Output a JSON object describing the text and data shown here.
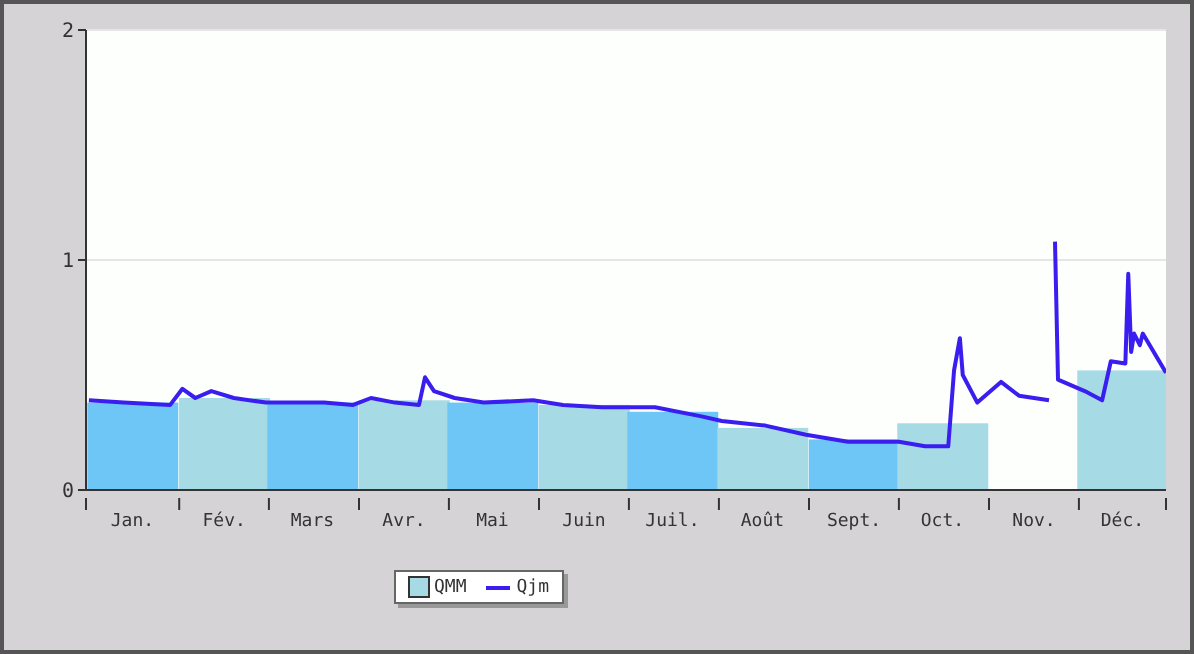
{
  "chart_data": {
    "type": "bar",
    "series": [
      {
        "name": "QMM",
        "color": "#a6dbe6",
        "x": [
          "--01-16",
          "--02-15",
          "--03-16",
          "--04-16",
          "--05-16",
          "--06-16",
          "--07-16",
          "--08-16",
          "--09-16",
          "--10-16",
          "--11-16",
          "--12-16"
        ],
        "colors": [
          "#6ec6f6",
          "#a6dbe6",
          "#6ec6f6",
          "#a6dbe6",
          "#6ec6f6",
          "#a6dbe6",
          "#6ec6f6",
          "#a6dbe6",
          "#6ec6f6",
          "#a6dbe6",
          null,
          "#a6dbe6"
        ],
        "values": [
          0.38,
          0.4,
          0.38,
          0.39,
          0.38,
          0.37,
          0.34,
          0.27,
          0.22,
          0.29,
          null,
          0.52
        ]
      },
      {
        "name": "Qjm",
        "type": "line",
        "color": "#3a1ef0",
        "x": [
          "--01-01",
          "--01-13",
          "--01-29",
          "--02-02",
          "--02-06",
          "--02-11",
          "--02-18",
          "--02-28",
          "--03-20",
          "--03-30",
          "--04-05",
          "--04-13",
          "--04-21",
          "--04-23",
          "--04-26",
          "--05-03",
          "--05-13",
          "--05-30",
          "--06-09",
          "--06-22",
          "--07-10",
          "--07-26",
          "--08-02",
          "--08-17",
          "--08-31",
          "--09-14",
          "--10-01",
          "--10-10",
          "--10-18",
          "--10-20",
          "--10-22",
          "--10-23",
          "--10-28",
          "--11-05",
          "--11-11",
          "--11-21",
          "--11-22",
          "--11-23",
          "--11-24",
          "--12-03",
          "--12-09",
          "--12-12",
          "--12-17",
          "--12-18",
          "--12-19",
          "--12-20",
          "--12-22",
          "--12-23",
          "--12-31"
        ],
        "values": [
          0.39,
          0.38,
          0.37,
          0.44,
          0.4,
          0.43,
          0.4,
          0.38,
          0.38,
          0.37,
          0.4,
          0.38,
          0.37,
          0.49,
          0.43,
          0.4,
          0.38,
          0.39,
          0.37,
          0.36,
          0.36,
          0.32,
          0.3,
          0.28,
          0.24,
          0.21,
          0.21,
          0.19,
          0.19,
          0.52,
          0.66,
          0.5,
          0.38,
          0.47,
          0.41,
          0.39,
          null,
          1.08,
          0.48,
          0.43,
          0.39,
          0.56,
          0.55,
          0.94,
          0.6,
          0.68,
          0.63,
          0.68,
          0.51
        ]
      }
    ],
    "xlim": [
      "--01-01",
      "--12-31"
    ],
    "xticks": [
      {
        "value": "--01-01",
        "label": null
      },
      {
        "value": "--01-16",
        "label": "Jan."
      },
      {
        "value": "--02-01",
        "label": null
      },
      {
        "value": "--02-15",
        "label": "Fév."
      },
      {
        "value": "--03-01",
        "label": null
      },
      {
        "value": "--03-16",
        "label": "Mars"
      },
      {
        "value": "--04-01",
        "label": null
      },
      {
        "value": "--04-16",
        "label": "Avr."
      },
      {
        "value": "--05-01",
        "label": null
      },
      {
        "value": "--05-16",
        "label": "Mai"
      },
      {
        "value": "--06-01",
        "label": null
      },
      {
        "value": "--06-16",
        "label": "Juin"
      },
      {
        "value": "--07-01",
        "label": null
      },
      {
        "value": "--07-16",
        "label": "Juil."
      },
      {
        "value": "--08-01",
        "label": null
      },
      {
        "value": "--08-16",
        "label": "Août"
      },
      {
        "value": "--09-01",
        "label": null
      },
      {
        "value": "--09-16",
        "label": "Sept."
      },
      {
        "value": "--10-01",
        "label": null
      },
      {
        "value": "--10-16",
        "label": "Oct."
      },
      {
        "value": "--11-01",
        "label": null
      },
      {
        "value": "--11-16",
        "label": "Nov."
      },
      {
        "value": "--12-01",
        "label": null
      },
      {
        "value": "--12-16",
        "label": "Déc."
      },
      {
        "value": "--12-31",
        "label": null
      }
    ],
    "ylim": [
      0,
      2
    ],
    "yticks": [
      0,
      1,
      2
    ],
    "grid": "y",
    "legend": "bottom",
    "line_style": "solid",
    "marker": "none"
  }
}
